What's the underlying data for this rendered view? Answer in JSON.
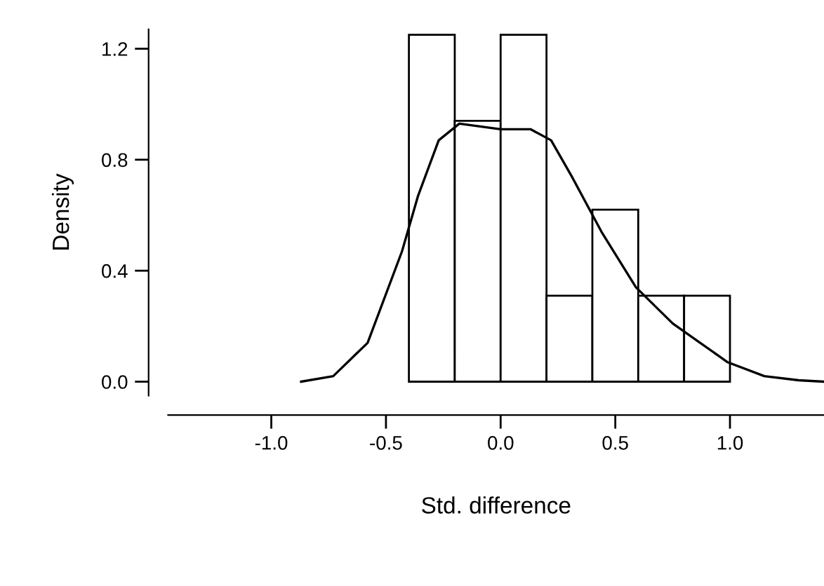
{
  "chart_data": {
    "type": "histogram",
    "xlabel": "Std. difference",
    "ylabel": "Density",
    "bins": [
      -0.4,
      -0.2,
      0.0,
      0.2,
      0.4,
      0.6,
      0.8,
      1.0
    ],
    "values": [
      1.25,
      0.94,
      1.25,
      0.31,
      0.62,
      0.31,
      0.31
    ],
    "color": "#ffffff",
    "series": [
      {
        "type": "line",
        "color": "#000000",
        "x": [
          -0.87,
          -0.73,
          -0.58,
          -0.43,
          -0.36,
          -0.27,
          -0.18,
          -0.09,
          0.0,
          0.13,
          0.22,
          0.31,
          0.44,
          0.59,
          0.75,
          0.87,
          0.99,
          1.15,
          1.3,
          1.41
        ],
        "values": [
          0.0,
          0.02,
          0.14,
          0.47,
          0.67,
          0.87,
          0.93,
          0.92,
          0.91,
          0.91,
          0.87,
          0.74,
          0.54,
          0.34,
          0.21,
          0.14,
          0.07,
          0.02,
          0.005,
          0.0
        ]
      }
    ],
    "xlim": [
      -1.45,
      1.41
    ],
    "ylim": [
      -0.05,
      1.27
    ],
    "xticks": [
      {
        "value": -1.0,
        "label": "-1.0"
      },
      {
        "value": -0.5,
        "label": "-0.5"
      },
      {
        "value": 0.0,
        "label": "0.0"
      },
      {
        "value": 0.5,
        "label": "0.5"
      },
      {
        "value": 1.0,
        "label": "1.0"
      }
    ],
    "yticks": [
      {
        "value": 0.0,
        "label": "0.0"
      },
      {
        "value": 0.4,
        "label": "0.4"
      },
      {
        "value": 0.8,
        "label": "0.8"
      },
      {
        "value": 1.2,
        "label": "1.2"
      }
    ]
  }
}
